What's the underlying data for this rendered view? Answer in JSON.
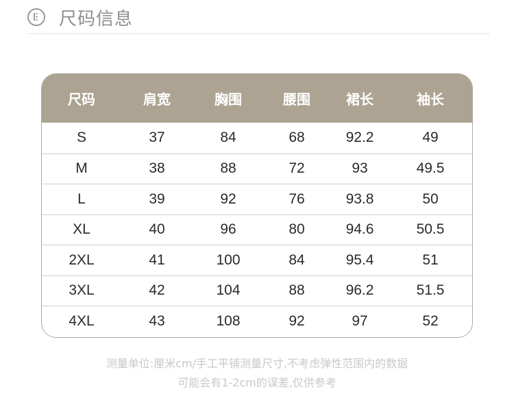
{
  "title": {
    "icon": "ruler-circle-icon",
    "text": "尺码信息"
  },
  "table": {
    "header_color": "#aca392",
    "columns": [
      "尺码",
      "肩宽",
      "胸围",
      "腰围",
      "裙长",
      "袖长"
    ],
    "rows": [
      [
        "S",
        "37",
        "84",
        "68",
        "92.2",
        "49"
      ],
      [
        "M",
        "38",
        "88",
        "72",
        "93",
        "49.5"
      ],
      [
        "L",
        "39",
        "92",
        "76",
        "93.8",
        "50"
      ],
      [
        "XL",
        "40",
        "96",
        "80",
        "94.6",
        "50.5"
      ],
      [
        "2XL",
        "41",
        "100",
        "84",
        "95.4",
        "51"
      ],
      [
        "3XL",
        "42",
        "104",
        "88",
        "96.2",
        "51.5"
      ],
      [
        "4XL",
        "43",
        "108",
        "92",
        "97",
        "52"
      ]
    ]
  },
  "notes": [
    "测量单位:厘米cm/手工平铺测量尺寸,不考虑弹性范围内的数据",
    "可能会有1-2cm的误差,仅供参考"
  ]
}
